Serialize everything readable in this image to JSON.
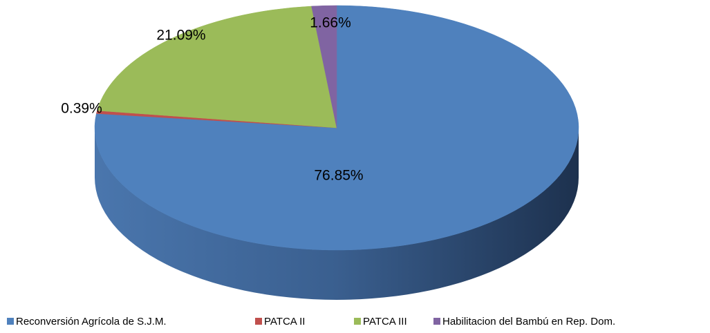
{
  "chart_data": {
    "type": "pie",
    "categories": [
      "Reconversión Agrícola de S.J.M.",
      "PATCA II",
      "PATCA III",
      "Habilitacion del Bambú en Rep. Dom."
    ],
    "values": [
      76.85,
      0.39,
      21.09,
      1.66
    ],
    "value_labels": [
      "76.85%",
      "0.39%",
      "21.09%",
      "1.66%"
    ],
    "colors": [
      "#4f81bd",
      "#c0504d",
      "#9bbb59",
      "#8064a2"
    ],
    "legend": "bottom"
  }
}
